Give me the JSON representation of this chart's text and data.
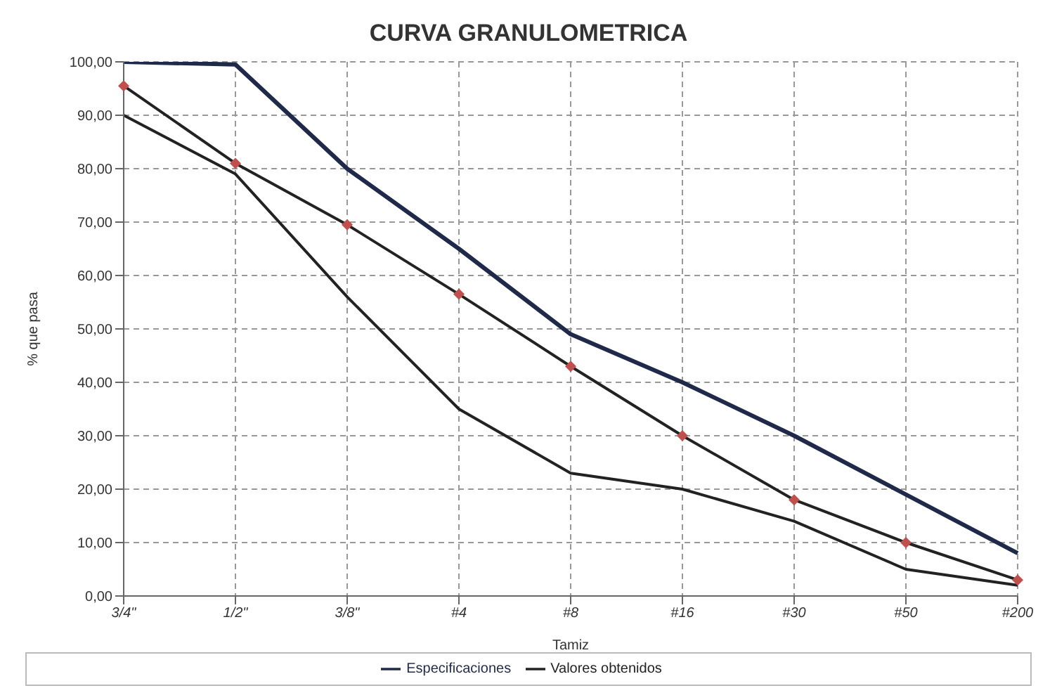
{
  "chart_data": {
    "type": "line",
    "title": "CURVA GRANULOMETRICA",
    "xlabel": "Tamiz",
    "ylabel": "% que pasa",
    "categories": [
      "3/4\"",
      "1/2\"",
      "3/8\"",
      "#4",
      "#8",
      "#16",
      "#30",
      "#50",
      "#200"
    ],
    "series": [
      {
        "name": "Valores obtenidos",
        "color": "#222222",
        "marker": "diamond",
        "colors": [
          "#c0504d",
          "#c0504d",
          "#c0504d",
          "#c0504d",
          "#c0504d",
          "#c0504d",
          "#c0504d",
          "#c0504d",
          "#c0504d"
        ],
        "values": [
          95.5,
          81,
          69.5,
          56.5,
          43,
          30,
          18,
          10,
          3
        ]
      },
      {
        "name": "Especificaciones",
        "color": "#1f2a4a",
        "marker": "none",
        "values": [
          100,
          99.5,
          80,
          65,
          49,
          40,
          30,
          19,
          8
        ]
      },
      {
        "color": "#222222",
        "marker": "none",
        "values": [
          90,
          79,
          56,
          35,
          23,
          20,
          14,
          5,
          2
        ]
      }
    ],
    "ylim": [
      0,
      100
    ],
    "yticks": [
      {
        "value": 0,
        "label": "0,00"
      },
      {
        "value": 10,
        "label": "10,00"
      },
      {
        "value": 20,
        "label": "20,00"
      },
      {
        "value": 30,
        "label": "30,00"
      },
      {
        "value": 40,
        "label": "40,00"
      },
      {
        "value": 50,
        "label": "50,00"
      },
      {
        "value": 60,
        "label": "60,00"
      },
      {
        "value": 70,
        "label": "70,00"
      },
      {
        "value": 80,
        "label": "80,00"
      },
      {
        "value": 90,
        "label": "90,00"
      },
      {
        "value": 100,
        "label": "100,00"
      }
    ],
    "grid": true,
    "legend": "bottom"
  }
}
